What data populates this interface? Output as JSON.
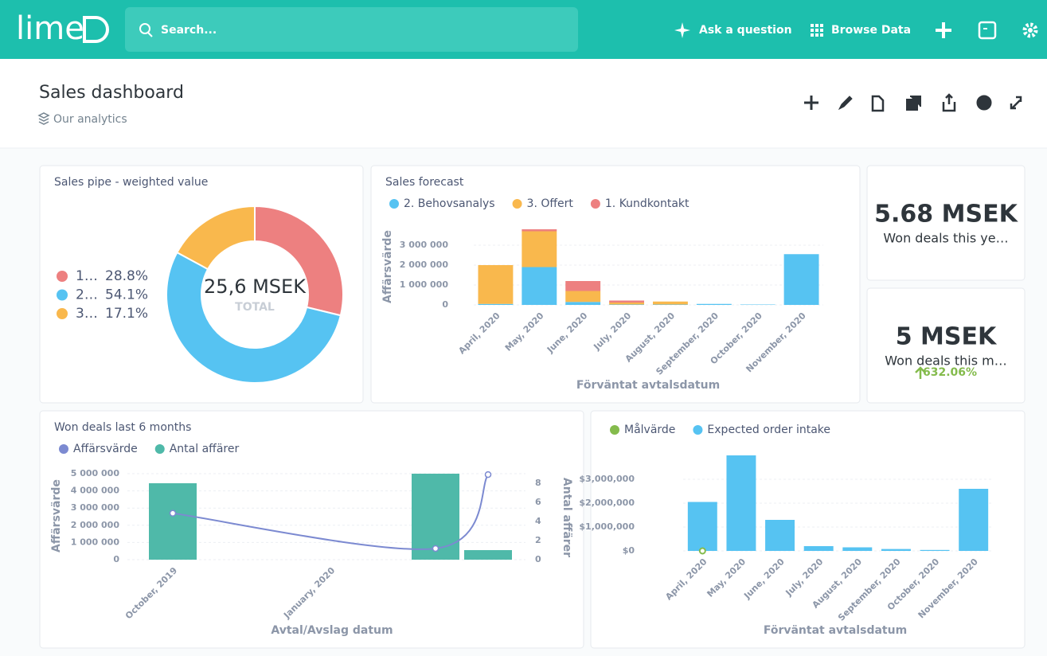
{
  "header": {
    "logo": "lime",
    "search_placeholder": "Search...",
    "ask": "Ask a question",
    "browse": "Browse Data"
  },
  "dashboard": {
    "title": "Sales dashboard",
    "collection": "Our analytics"
  },
  "chart_data": [
    {
      "type": "donut",
      "title": "Sales pipe - weighted value",
      "categories": [
        "1…",
        "2…",
        "3…"
      ],
      "values": [
        28.8,
        54.1,
        17.1
      ],
      "value_labels": [
        "28.8%",
        "54.1%",
        "17.1%"
      ],
      "colors": [
        "#ed8080",
        "#56c3f2",
        "#f9b84d"
      ],
      "center_value": "25,6 MSEK",
      "center_label": "TOTAL"
    },
    {
      "type": "stacked-bar",
      "title": "Sales forecast",
      "categories": [
        "April, 2020",
        "May, 2020",
        "June, 2020",
        "July, 2020",
        "August, 2020",
        "September, 2020",
        "October, 2020",
        "November, 2020"
      ],
      "series": [
        {
          "name": "2. Behovsanalys",
          "color": "#56c3f2",
          "values": [
            50000,
            1900000,
            150000,
            20000,
            20000,
            50000,
            20000,
            2550000
          ]
        },
        {
          "name": "3. Offert",
          "color": "#f9b84d",
          "values": [
            1950000,
            1800000,
            550000,
            100000,
            150000,
            0,
            0,
            0
          ]
        },
        {
          "name": "1. Kundkontakt",
          "color": "#ed8080",
          "values": [
            0,
            100000,
            500000,
            100000,
            0,
            0,
            0,
            0
          ]
        }
      ],
      "ylim": [
        0,
        4000000
      ],
      "yticks": [
        0,
        {
          "value": 1000000,
          "label": "1 000 000"
        },
        {
          "value": 2000000,
          "label": "2 000 000"
        },
        {
          "value": 3000000,
          "label": "3 000 000"
        }
      ],
      "ylabel": "Affärsvärde",
      "xlabel": "Förväntat avtalsdatum",
      "grid": true
    },
    {
      "type": "scalar",
      "display": "5.68 MSEK",
      "label": "Won deals this ye…"
    },
    {
      "type": "scalar",
      "display": "5 MSEK",
      "label": "Won deals this m…",
      "change": "632.06%"
    },
    {
      "type": "combo",
      "title": "Won deals last 6 months",
      "categories": [
        "October, 2019",
        null,
        null,
        "January, 2020",
        null,
        null,
        null
      ],
      "series": [
        {
          "name": "Affärsvärde",
          "color": "#7c8ad1",
          "kind": "line",
          "values": [
            2700000,
            null,
            null,
            null,
            null,
            650000,
            4950000
          ]
        },
        {
          "name": "Antal affärer",
          "color": "#4fb9a9",
          "kind": "bar",
          "axis": "y2",
          "values": [
            8,
            null,
            null,
            null,
            null,
            9,
            1
          ]
        }
      ],
      "ylim": [
        0,
        5000000
      ],
      "yticks": [
        0,
        {
          "value": 1000000,
          "label": "1 000 000"
        },
        {
          "value": 2000000,
          "label": "2 000 000"
        },
        {
          "value": 3000000,
          "label": "3 000 000"
        },
        {
          "value": 4000000,
          "label": "4 000 000"
        },
        {
          "value": 5000000,
          "label": "5 000 000"
        }
      ],
      "y2lim": [
        0,
        9
      ],
      "y2ticks": [
        0,
        2,
        4,
        6,
        8
      ],
      "ylabel": "Affärsvärde",
      "y2label": "Antal affärer",
      "xlabel": "Avtal/Avslag datum",
      "grid": true
    },
    {
      "type": "bar",
      "categories": [
        "April, 2020",
        "May, 2020",
        "June, 2020",
        "July, 2020",
        "August, 2020",
        "September, 2020",
        "October, 2020",
        "November, 2020"
      ],
      "series": [
        {
          "name": "Målvärde",
          "color": "#84bb4c",
          "kind": "point",
          "values": [
            0,
            null,
            null,
            null,
            null,
            null,
            null,
            null
          ]
        },
        {
          "name": "Expected order intake",
          "color": "#56c3f2",
          "kind": "bar",
          "values": [
            2050000,
            4000000,
            1300000,
            200000,
            150000,
            80000,
            40000,
            2600000
          ]
        }
      ],
      "ylim": [
        0,
        4000000
      ],
      "yticks": [
        {
          "value": 0,
          "label": "$0"
        },
        {
          "value": 1000000,
          "label": "$1,000,000"
        },
        {
          "value": 2000000,
          "label": "$2,000,000"
        },
        {
          "value": 3000000,
          "label": "$3,000,000"
        }
      ],
      "xlabel": "Förväntat avtalsdatum",
      "grid": true
    }
  ]
}
